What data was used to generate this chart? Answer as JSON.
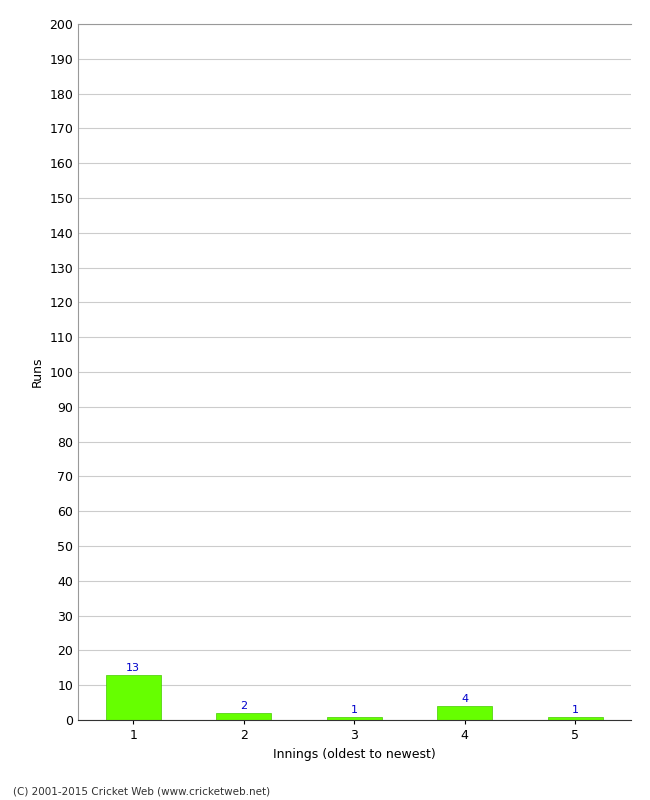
{
  "categories": [
    1,
    2,
    3,
    4,
    5
  ],
  "values": [
    13,
    2,
    1,
    4,
    1
  ],
  "bar_color": "#66ff00",
  "bar_edge_color": "#44cc00",
  "ylabel": "Runs",
  "xlabel": "Innings (oldest to newest)",
  "ylim": [
    0,
    200
  ],
  "yticks": [
    0,
    10,
    20,
    30,
    40,
    50,
    60,
    70,
    80,
    90,
    100,
    110,
    120,
    130,
    140,
    150,
    160,
    170,
    180,
    190,
    200
  ],
  "annotation_color": "#0000cc",
  "annotation_fontsize": 8,
  "footer": "(C) 2001-2015 Cricket Web (www.cricketweb.net)",
  "background_color": "#ffffff",
  "grid_color": "#cccccc",
  "tick_label_fontsize": 9,
  "axis_label_fontsize": 9,
  "bar_width": 0.5
}
